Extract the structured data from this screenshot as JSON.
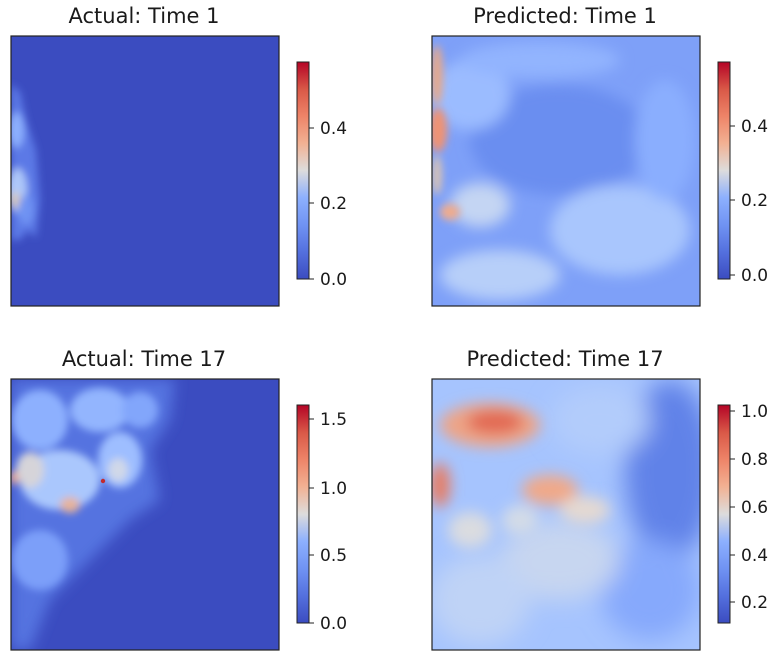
{
  "chart_data": [
    {
      "type": "heatmap",
      "title": "Actual: Time 1",
      "colormap": "coolwarm",
      "colorbar": {
        "range": [
          0.0,
          0.57
        ],
        "ticks": [
          0.0,
          0.2,
          0.4
        ],
        "tick_labels": [
          "0.0",
          "0.2",
          "0.4"
        ]
      },
      "description": "Almost entirely minimum values; a narrow band of higher values (up to ~0.4) along the left edge in the upper half."
    },
    {
      "type": "heatmap",
      "title": "Predicted: Time 1",
      "colormap": "coolwarm",
      "colorbar": {
        "range": [
          -0.01,
          0.57
        ],
        "ticks": [
          0.0,
          0.2,
          0.4
        ],
        "tick_labels": [
          "0.0",
          "0.2",
          "0.4"
        ]
      },
      "description": "Mostly low-moderate values (~0.1-0.2) with a warm (~0.4) streak along the left edge and paler areas toward the bottom."
    },
    {
      "type": "heatmap",
      "title": "Actual: Time 17",
      "colormap": "coolwarm",
      "colorbar": {
        "range": [
          0.0,
          1.62
        ],
        "ticks": [
          0.0,
          0.5,
          1.0,
          1.5
        ],
        "tick_labels": [
          "0.0",
          "0.5",
          "1.0",
          "1.5"
        ]
      },
      "description": "Patchy light-blue/white structure (~0.5-1.0) across the upper-left half with a small hot spot (~1.5) near the center-left; the rest near 0."
    },
    {
      "type": "heatmap",
      "title": "Predicted: Time 17",
      "colormap": "coolwarm",
      "colorbar": {
        "range": [
          0.1,
          1.03
        ],
        "ticks": [
          0.2,
          0.4,
          0.6,
          0.8,
          1.0
        ],
        "tick_labels": [
          "0.2",
          "0.4",
          "0.6",
          "0.8",
          "1.0"
        ]
      },
      "description": "Widespread moderate values (~0.4-0.6) with warm blobs (~0.8-0.9) at the upper left and center, cooler values (~0.2) on the right side."
    }
  ]
}
